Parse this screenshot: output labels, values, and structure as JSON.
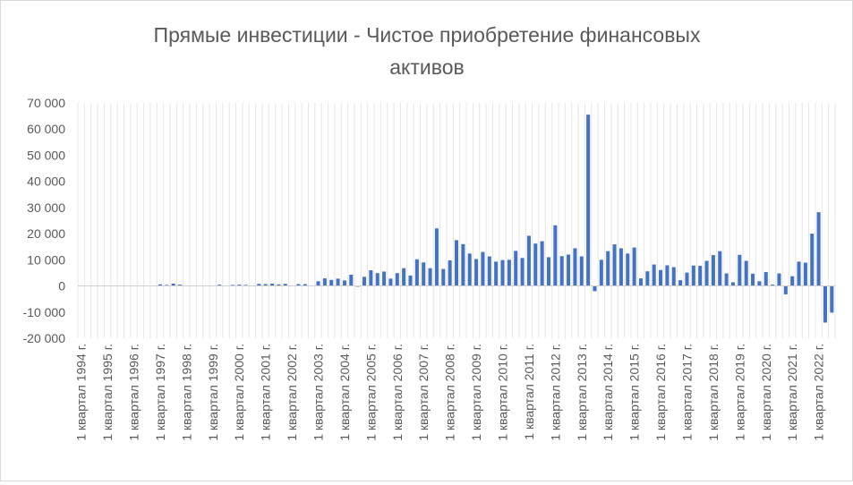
{
  "chart_data": {
    "type": "bar",
    "title": "Прямые инвестиции - Чистое приобретение финансовых активов",
    "title_lines": [
      "Прямые инвестиции - Чистое приобретение финансовых",
      "активов"
    ],
    "ylim": [
      -20000,
      70000
    ],
    "yticks": [
      70000,
      60000,
      50000,
      40000,
      30000,
      20000,
      10000,
      0,
      -10000,
      -20000
    ],
    "ytick_labels": [
      "70 000",
      "60 000",
      "50 000",
      "40 000",
      "30 000",
      "20 000",
      "10 000",
      "0",
      "-10 000",
      "-20 000"
    ],
    "grid": "vertical",
    "legend": "none",
    "bar_color": "#4472c4",
    "start_year": 1994,
    "x_labels": [
      "1 квартал 1994 г.",
      "1 квартал 1995 г.",
      "1 квартал 1996 г.",
      "1 квартал 1997 г.",
      "1 квартал 1998 г.",
      "1 квартал 1999 г.",
      "1 квартал 2000 г.",
      "1 квартал 2001 г.",
      "1 квартал 2002 г.",
      "1 квартал 2003 г.",
      "1 квартал 2004 г.",
      "1 квартал 2005 г.",
      "1 квартал 2006 г.",
      "1 квартал 2007 г.",
      "1 квартал 2008 г.",
      "1 квартал 2009 г.",
      "1 квартал 2010 г.",
      "1 квартал 2011 г.",
      "1 квартал 2012 г.",
      "1 квартал 2013 г.",
      "1 квартал 2014 г.",
      "1 квартал 2015 г.",
      "1 квартал 2016 г.",
      "1 квартал 2017 г.",
      "1 квартал 2018 г.",
      "1 квартал 2019 г.",
      "1 квартал 2020 г.",
      "1 квартал 2021 г.",
      "1 квартал 2022 г."
    ],
    "values": [
      0,
      0,
      0,
      0,
      0,
      0,
      0,
      0,
      0,
      0,
      0,
      0,
      600,
      400,
      900,
      500,
      0,
      0,
      0,
      0,
      0,
      500,
      0,
      400,
      500,
      400,
      0,
      800,
      700,
      900,
      600,
      800,
      0,
      700,
      700,
      0,
      1800,
      2900,
      2300,
      2800,
      2100,
      4300,
      -300,
      3500,
      6000,
      4900,
      5500,
      2800,
      4900,
      6800,
      4000,
      10200,
      9000,
      6800,
      22000,
      6500,
      9800,
      17500,
      16000,
      12400,
      10300,
      13000,
      11300,
      9300,
      9900,
      10000,
      13400,
      10700,
      19200,
      16200,
      17100,
      11000,
      23200,
      11400,
      12000,
      14400,
      11300,
      65500,
      -2000,
      10000,
      13300,
      15900,
      14400,
      12400,
      14700,
      2900,
      5600,
      8200,
      6100,
      7900,
      7200,
      2200,
      5100,
      7800,
      7700,
      9600,
      11800,
      13300,
      4800,
      1400,
      11900,
      9600,
      4700,
      1800,
      5300,
      500,
      4800,
      -3200,
      3700,
      9300,
      8900,
      20000,
      28200,
      -14000,
      -10200
    ]
  }
}
